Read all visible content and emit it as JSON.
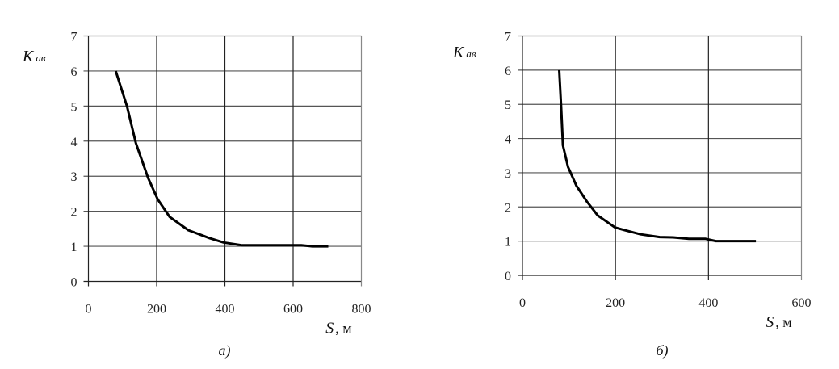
{
  "chart_data": [
    {
      "type": "line",
      "caption": "а)",
      "ylabel": "K",
      "ylabel_sub": "ав",
      "xlabel": "S",
      "xunit": ", м",
      "xlim": [
        0,
        800
      ],
      "ylim": [
        0,
        7
      ],
      "xticks": [
        "0",
        "200",
        "400",
        "600",
        "800"
      ],
      "yticks": [
        "0",
        "1",
        "2",
        "3",
        "4",
        "5",
        "6",
        "7"
      ],
      "grid": true,
      "line_color": "#000000",
      "x": [
        80,
        113,
        139,
        175,
        203,
        238,
        293,
        356,
        396,
        451,
        624,
        656,
        703
      ],
      "y": [
        6.0,
        5.0,
        3.95,
        2.95,
        2.34,
        1.84,
        1.46,
        1.23,
        1.11,
        1.03,
        1.03,
        1.0,
        1.0
      ]
    },
    {
      "type": "line",
      "caption": "б)",
      "ylabel": "K",
      "ylabel_sub": "ав",
      "xlabel": "S",
      "xunit": ", м",
      "xlim": [
        0,
        600
      ],
      "ylim": [
        0,
        7
      ],
      "xticks": [
        "0",
        "200",
        "400",
        "600"
      ],
      "yticks": [
        "0",
        "1",
        "2",
        "3",
        "4",
        "5",
        "6",
        "7"
      ],
      "grid": true,
      "line_color": "#000000",
      "x": [
        79,
        83,
        87,
        98,
        116,
        139,
        162,
        199,
        220,
        254,
        295,
        324,
        358,
        393,
        416,
        502
      ],
      "y": [
        6.0,
        4.98,
        3.8,
        3.17,
        2.62,
        2.15,
        1.75,
        1.4,
        1.32,
        1.2,
        1.12,
        1.11,
        1.07,
        1.07,
        1.0,
        1.0
      ]
    }
  ]
}
